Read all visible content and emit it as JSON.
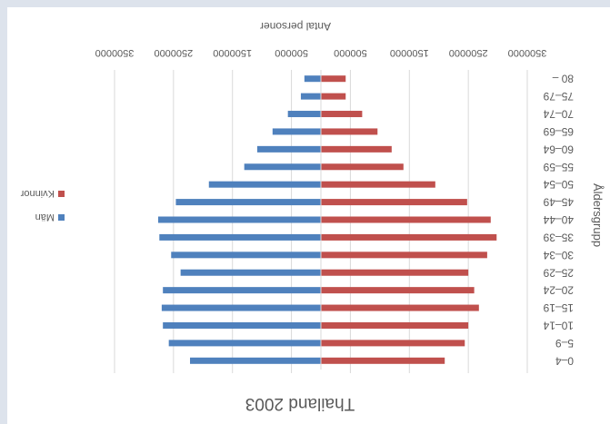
{
  "chart_data": {
    "type": "bar",
    "orientation": "horizontal",
    "stacked": "diverging",
    "title": "Thailand 2003",
    "xlabel": "Antal personer",
    "ylabel": "Åldersgrupp",
    "xlim": [
      -3500000,
      3500000
    ],
    "x_ticks": [
      -3500000,
      -2500000,
      -1500000,
      -500000,
      500000,
      1500000,
      2500000,
      3500000
    ],
    "x_tick_labels": [
      "3500000",
      "2500000",
      "1500000",
      "500000",
      "500000",
      "1500000",
      "2500000",
      "3500000"
    ],
    "categories": [
      "0–4",
      "5–9",
      "10–14",
      "15–19",
      "20–24",
      "25–29",
      "30–34",
      "35–39",
      "40–44",
      "45–49",
      "50–54",
      "55–59",
      "60–64",
      "65–69",
      "70–74",
      "75–79",
      "80 –"
    ],
    "series": [
      {
        "name": "Män",
        "color": "#4f81bd",
        "values": [
          2220000,
          2580000,
          2680000,
          2700000,
          2680000,
          2380000,
          2540000,
          2740000,
          2760000,
          2460000,
          1900000,
          1300000,
          1080000,
          820000,
          560000,
          340000,
          280000
        ]
      },
      {
        "name": "Kvinnor",
        "color": "#c0504d",
        "values": [
          -2100000,
          -2440000,
          -2500000,
          -2680000,
          -2600000,
          -2500000,
          -2820000,
          -2980000,
          -2880000,
          -2480000,
          -1940000,
          -1400000,
          -1200000,
          -960000,
          -700000,
          -420000,
          -420000
        ]
      }
    ],
    "grid": "vertical",
    "legend_position": "right",
    "rendered_rotation_degrees": 180
  }
}
